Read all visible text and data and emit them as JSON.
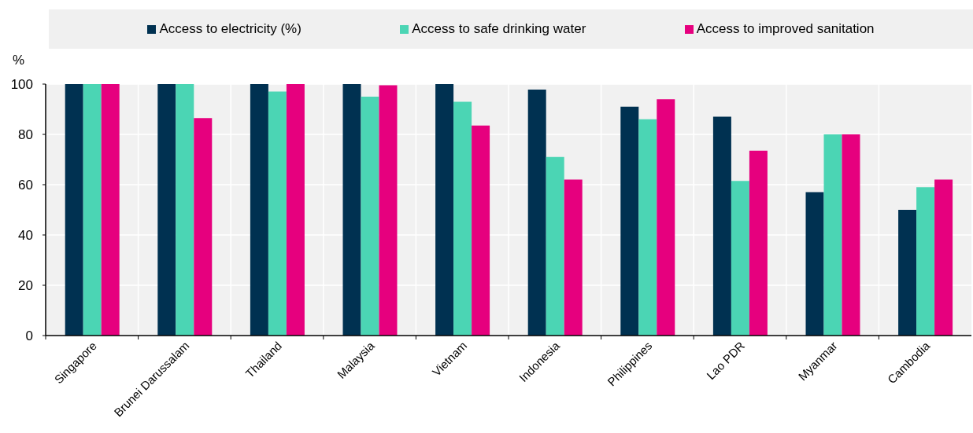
{
  "chart_data": {
    "type": "bar",
    "ylabel": "%",
    "categories": [
      "Singapore",
      "Brunei Darussalam",
      "Thailand",
      "Malaysia",
      "Vietnam",
      "Indonesia",
      "Philippines",
      "Lao PDR",
      "Myanmar",
      "Cambodia"
    ],
    "series": [
      {
        "name": "Access to electricity (%)",
        "color": "#003151",
        "values": [
          100,
          100,
          100,
          100,
          100,
          97.8,
          91,
          87,
          57,
          50
        ]
      },
      {
        "name": "Access to safe drinking water",
        "color": "#4bd5b4",
        "values": [
          100,
          100,
          97,
          95,
          93,
          71,
          86,
          61.5,
          80,
          59
        ]
      },
      {
        "name": "Access to improved sanitation",
        "color": "#e6007e",
        "values": [
          100,
          86.5,
          100,
          99.5,
          83.5,
          62,
          94,
          73.5,
          80,
          62
        ]
      }
    ],
    "ylim": [
      0,
      100
    ],
    "yticks": [
      0,
      20,
      40,
      60,
      80,
      100
    ],
    "grid": true,
    "legend": "top"
  }
}
